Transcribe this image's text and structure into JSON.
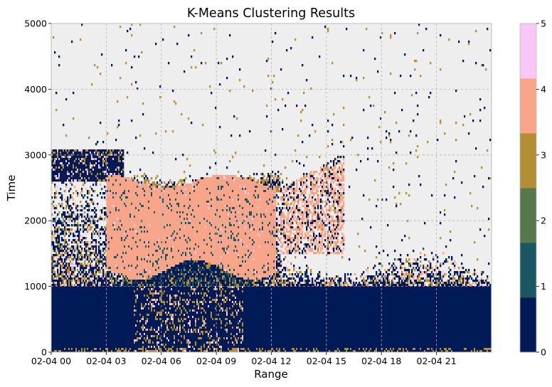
{
  "chart_data": {
    "type": "heatmap",
    "title": "K-Means Clustering Results",
    "xlabel": "Range",
    "ylabel": "Time",
    "ylim": [
      0,
      5000
    ],
    "y_ticks": [
      0,
      1000,
      2000,
      3000,
      4000,
      5000
    ],
    "x_ticks": [
      "02-04 00",
      "02-04 03",
      "02-04 06",
      "02-04 09",
      "02-04 12",
      "02-04 15",
      "02-04 18",
      "02-04 21"
    ],
    "x_range_hours": [
      0,
      24
    ],
    "grid": true,
    "colorbar": {
      "ticks": [
        0,
        1,
        2,
        3,
        4,
        5
      ],
      "colors": [
        "#001a57",
        "#1b5665",
        "#57784b",
        "#b38e34",
        "#f8a58a",
        "#f8c6f7"
      ]
    },
    "background_color": "#eeeeee",
    "regions": [
      {
        "cluster": 0,
        "description_hours": [
          0,
          24
        ],
        "y": [
          0,
          1000
        ]
      },
      {
        "cluster": 4,
        "description_hours": [
          3,
          12.5
        ],
        "y": [
          1200,
          2600
        ]
      },
      {
        "cluster": 0,
        "description_hours": [
          0,
          4
        ],
        "y": [
          2700,
          3000
        ]
      },
      {
        "cluster": 3,
        "description_hours": [
          4.5,
          11
        ],
        "y": [
          0,
          1000
        ]
      }
    ]
  }
}
